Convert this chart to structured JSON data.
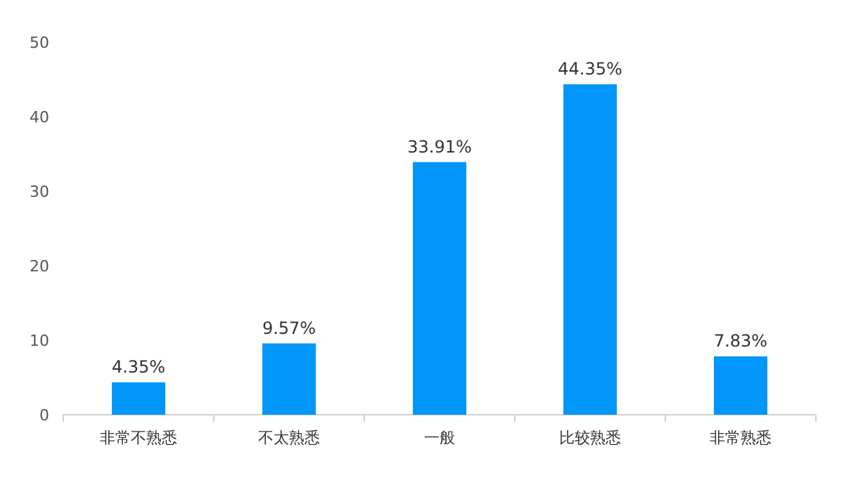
{
  "chart_data": {
    "type": "bar",
    "categories": [
      "非常不熟悉",
      "不太熟悉",
      "一般",
      "比较熟悉",
      "非常熟悉"
    ],
    "values": [
      4.35,
      9.57,
      33.91,
      44.35,
      7.83
    ],
    "value_labels": [
      "4.35%",
      "9.57%",
      "33.91%",
      "44.35%",
      "7.83%"
    ],
    "color": "#0096fa",
    "ylim": [
      0,
      50
    ],
    "yticks": [
      0,
      10,
      20,
      30,
      40,
      50
    ]
  }
}
